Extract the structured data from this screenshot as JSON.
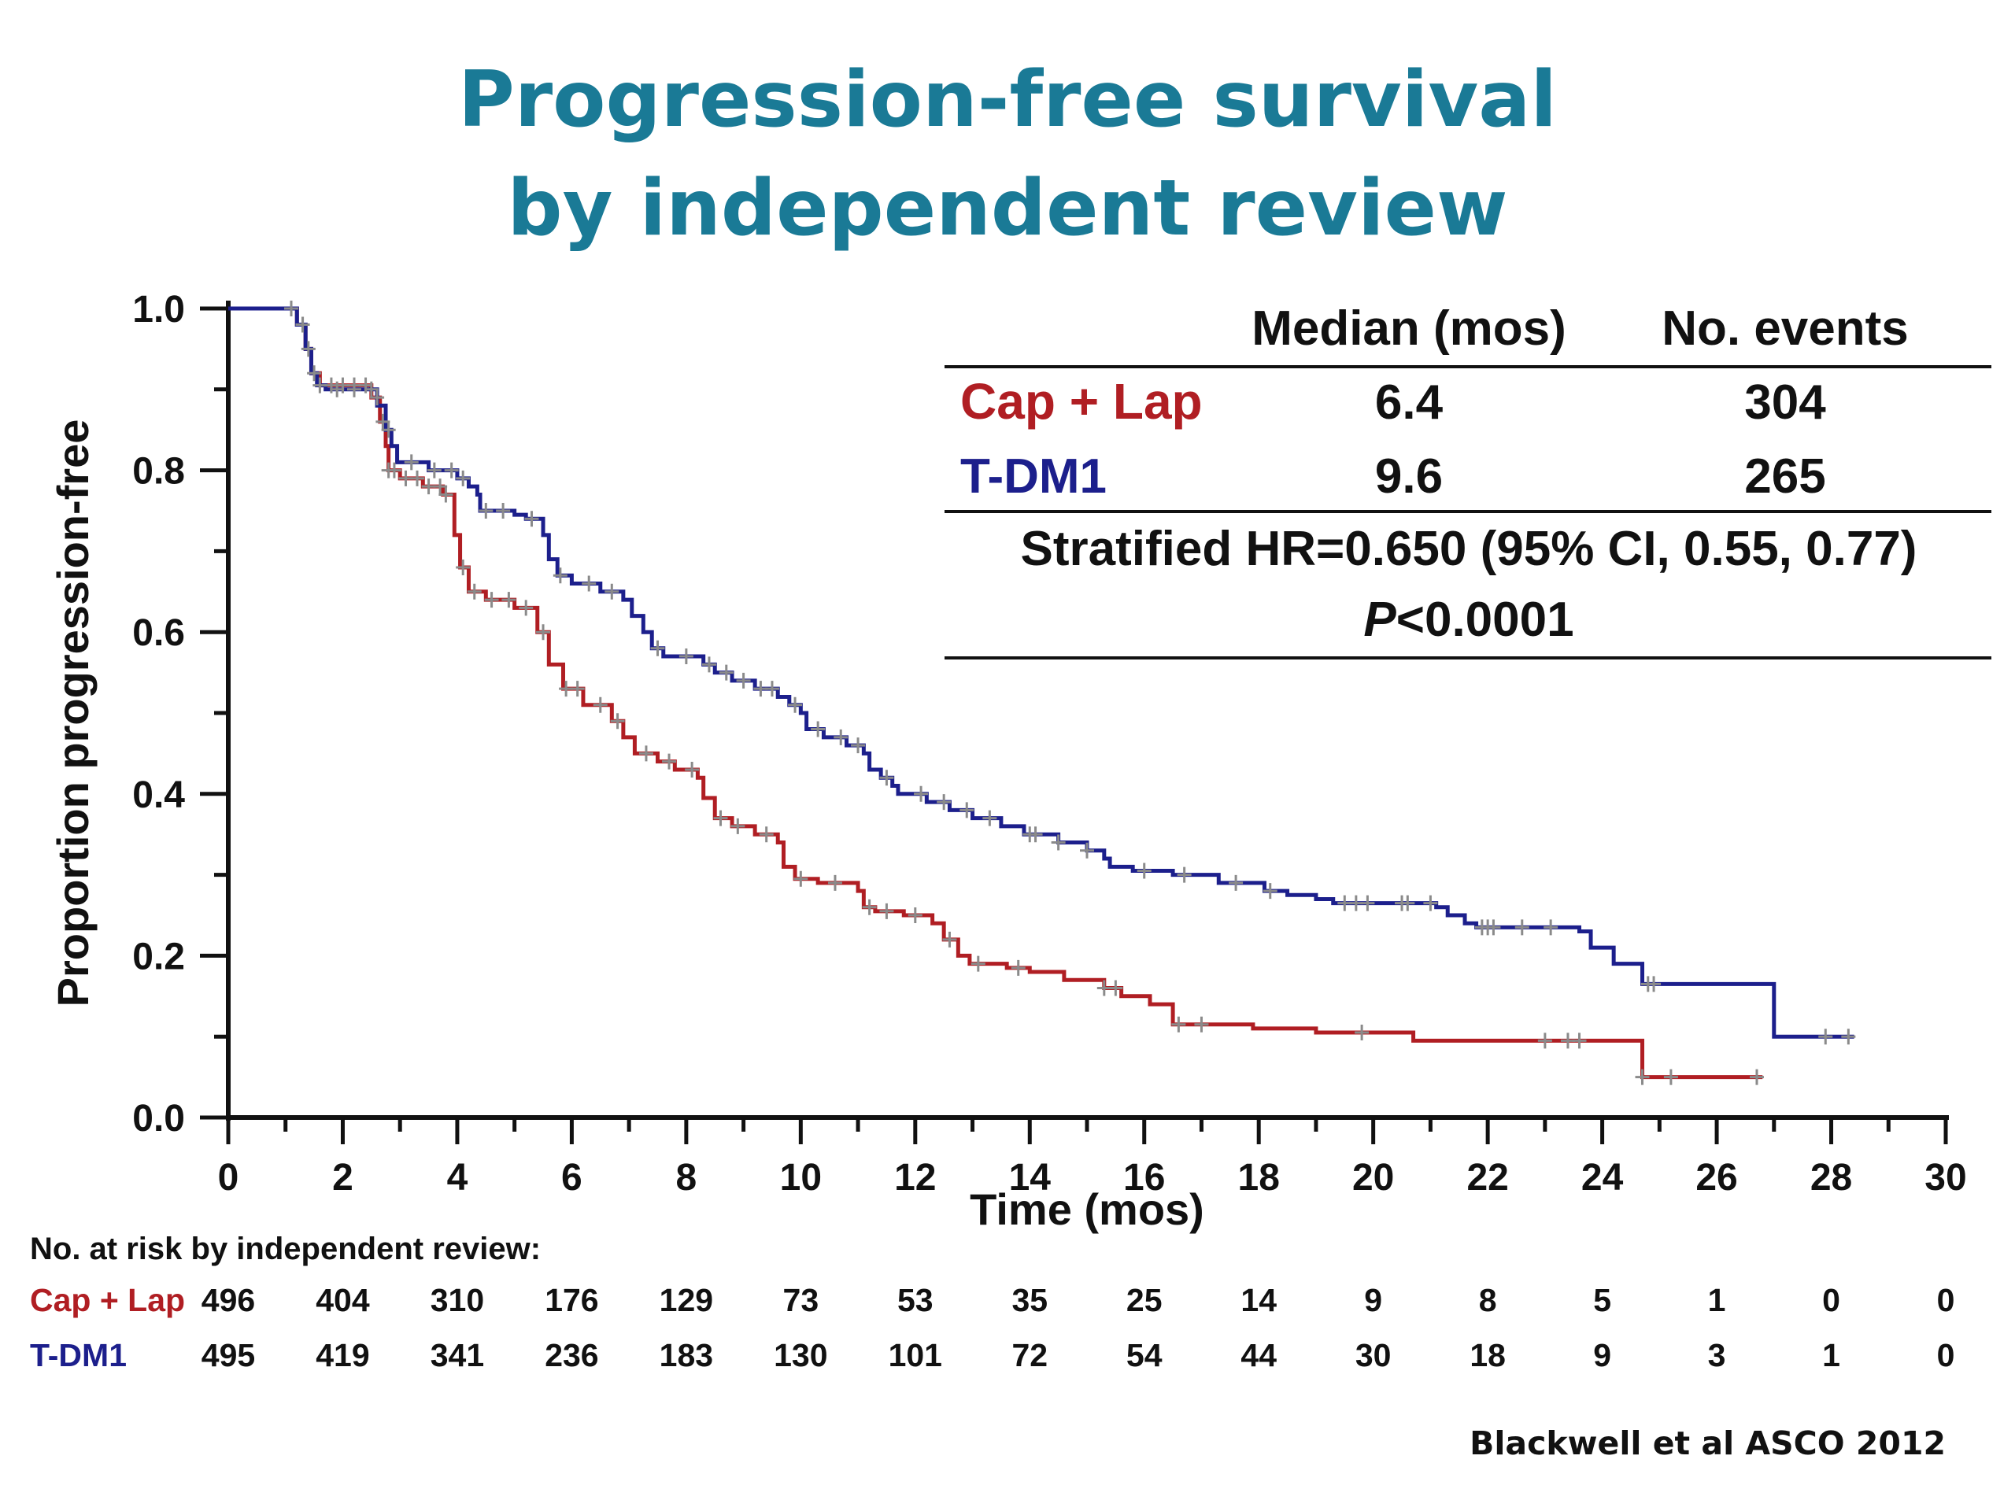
{
  "title_lines": [
    "Progression-free survival",
    "by independent review"
  ],
  "colors": {
    "title": "#1a7a96",
    "cap_lap": "#b01e23",
    "tdm1": "#1c1f8c",
    "censor": "#8a8a8a"
  },
  "chart_data": {
    "type": "line",
    "subtype": "kaplan-meier step",
    "xlabel": "Time (mos)",
    "ylabel": "Proportion progression-free",
    "xlim": [
      0,
      30
    ],
    "ylim": [
      0,
      1
    ],
    "xticks": [
      "0",
      "2",
      "4",
      "6",
      "8",
      "10",
      "12",
      "14",
      "16",
      "18",
      "20",
      "22",
      "24",
      "26",
      "28",
      "30"
    ],
    "yticks": [
      "0.0",
      "0.2",
      "0.4",
      "0.6",
      "0.8",
      "1.0"
    ],
    "grid": false,
    "series": [
      {
        "name": "Cap + Lap",
        "color": "#b01e23",
        "steps": [
          [
            0,
            1.0
          ],
          [
            1.2,
            0.98
          ],
          [
            1.35,
            0.95
          ],
          [
            1.45,
            0.92
          ],
          [
            1.6,
            0.905
          ],
          [
            2.5,
            0.89
          ],
          [
            2.65,
            0.86
          ],
          [
            2.75,
            0.83
          ],
          [
            2.8,
            0.8
          ],
          [
            3.0,
            0.79
          ],
          [
            3.4,
            0.78
          ],
          [
            3.75,
            0.77
          ],
          [
            3.95,
            0.72
          ],
          [
            4.05,
            0.68
          ],
          [
            4.2,
            0.65
          ],
          [
            4.5,
            0.64
          ],
          [
            5.0,
            0.63
          ],
          [
            5.4,
            0.6
          ],
          [
            5.6,
            0.56
          ],
          [
            5.85,
            0.53
          ],
          [
            6.2,
            0.51
          ],
          [
            6.7,
            0.49
          ],
          [
            6.9,
            0.47
          ],
          [
            7.1,
            0.45
          ],
          [
            7.5,
            0.44
          ],
          [
            7.8,
            0.43
          ],
          [
            8.2,
            0.42
          ],
          [
            8.3,
            0.395
          ],
          [
            8.5,
            0.37
          ],
          [
            8.8,
            0.36
          ],
          [
            9.2,
            0.35
          ],
          [
            9.6,
            0.34
          ],
          [
            9.7,
            0.31
          ],
          [
            9.9,
            0.295
          ],
          [
            10.3,
            0.29
          ],
          [
            11.0,
            0.28
          ],
          [
            11.1,
            0.26
          ],
          [
            11.3,
            0.255
          ],
          [
            11.8,
            0.25
          ],
          [
            12.3,
            0.24
          ],
          [
            12.5,
            0.22
          ],
          [
            12.75,
            0.2
          ],
          [
            12.95,
            0.19
          ],
          [
            13.6,
            0.185
          ],
          [
            14.0,
            0.18
          ],
          [
            14.6,
            0.17
          ],
          [
            15.3,
            0.16
          ],
          [
            15.6,
            0.15
          ],
          [
            16.1,
            0.14
          ],
          [
            16.5,
            0.13
          ],
          [
            16.5,
            0.115
          ],
          [
            17.9,
            0.11
          ],
          [
            19.0,
            0.105
          ],
          [
            20.7,
            0.095
          ],
          [
            24.7,
            0.05
          ],
          [
            26.8,
            0.05
          ]
        ],
        "censor_times": [
          1.1,
          1.3,
          1.4,
          1.6,
          1.8,
          2.0,
          2.2,
          2.4,
          2.6,
          2.7,
          2.8,
          2.9,
          3.1,
          3.3,
          3.5,
          3.7,
          3.8,
          4.1,
          4.3,
          4.6,
          4.9,
          5.2,
          5.5,
          5.9,
          6.1,
          6.5,
          6.8,
          7.3,
          7.7,
          8.1,
          8.6,
          8.9,
          9.4,
          10.0,
          10.6,
          11.2,
          11.5,
          12.0,
          12.6,
          13.1,
          13.8,
          15.3,
          15.5,
          16.6,
          17.0,
          19.8,
          23.0,
          23.4,
          23.6,
          24.7,
          25.2,
          26.7
        ],
        "median_mos": "6.4",
        "events": "304"
      },
      {
        "name": "T-DM1",
        "color": "#1c1f8c",
        "steps": [
          [
            0,
            1.0
          ],
          [
            1.2,
            0.98
          ],
          [
            1.35,
            0.95
          ],
          [
            1.45,
            0.92
          ],
          [
            1.55,
            0.905
          ],
          [
            1.7,
            0.9
          ],
          [
            2.6,
            0.88
          ],
          [
            2.75,
            0.85
          ],
          [
            2.85,
            0.83
          ],
          [
            2.95,
            0.81
          ],
          [
            3.5,
            0.8
          ],
          [
            4.0,
            0.79
          ],
          [
            4.2,
            0.78
          ],
          [
            4.35,
            0.77
          ],
          [
            4.4,
            0.75
          ],
          [
            5.0,
            0.745
          ],
          [
            5.2,
            0.74
          ],
          [
            5.5,
            0.72
          ],
          [
            5.6,
            0.69
          ],
          [
            5.75,
            0.67
          ],
          [
            6.0,
            0.66
          ],
          [
            6.5,
            0.65
          ],
          [
            6.9,
            0.64
          ],
          [
            7.05,
            0.62
          ],
          [
            7.25,
            0.6
          ],
          [
            7.4,
            0.58
          ],
          [
            7.6,
            0.57
          ],
          [
            8.3,
            0.56
          ],
          [
            8.5,
            0.55
          ],
          [
            8.8,
            0.54
          ],
          [
            9.2,
            0.53
          ],
          [
            9.6,
            0.52
          ],
          [
            9.8,
            0.51
          ],
          [
            10.0,
            0.5
          ],
          [
            10.1,
            0.48
          ],
          [
            10.4,
            0.47
          ],
          [
            10.8,
            0.46
          ],
          [
            11.1,
            0.45
          ],
          [
            11.2,
            0.43
          ],
          [
            11.4,
            0.42
          ],
          [
            11.6,
            0.41
          ],
          [
            11.7,
            0.4
          ],
          [
            12.2,
            0.39
          ],
          [
            12.6,
            0.38
          ],
          [
            13.0,
            0.37
          ],
          [
            13.5,
            0.36
          ],
          [
            13.9,
            0.35
          ],
          [
            14.5,
            0.34
          ],
          [
            15.0,
            0.33
          ],
          [
            15.3,
            0.32
          ],
          [
            15.4,
            0.31
          ],
          [
            15.8,
            0.305
          ],
          [
            16.5,
            0.3
          ],
          [
            17.3,
            0.29
          ],
          [
            17.9,
            0.29
          ],
          [
            18.1,
            0.28
          ],
          [
            18.5,
            0.275
          ],
          [
            19.0,
            0.27
          ],
          [
            19.3,
            0.265
          ],
          [
            20.0,
            0.265
          ],
          [
            21.1,
            0.26
          ],
          [
            21.3,
            0.25
          ],
          [
            21.6,
            0.24
          ],
          [
            21.8,
            0.235
          ],
          [
            23.6,
            0.23
          ],
          [
            23.8,
            0.21
          ],
          [
            24.2,
            0.19
          ],
          [
            24.7,
            0.165
          ],
          [
            27.0,
            0.1
          ],
          [
            28.4,
            0.1
          ]
        ],
        "censor_times": [
          1.1,
          1.3,
          1.5,
          1.9,
          2.2,
          2.5,
          2.8,
          3.2,
          3.6,
          3.9,
          4.1,
          4.5,
          4.8,
          5.3,
          5.8,
          6.3,
          6.7,
          7.5,
          8.0,
          8.4,
          8.7,
          9.0,
          9.3,
          9.5,
          9.9,
          10.3,
          10.7,
          11.0,
          11.5,
          12.1,
          12.5,
          12.9,
          13.3,
          14.0,
          14.1,
          14.5,
          15.0,
          16.0,
          16.7,
          17.6,
          18.2,
          19.5,
          19.7,
          19.9,
          20.5,
          20.6,
          21.0,
          21.9,
          22.0,
          22.1,
          22.6,
          23.1,
          24.8,
          24.9,
          27.9,
          28.3
        ],
        "median_mos": "9.6",
        "events": "265"
      }
    ]
  },
  "stats_table": {
    "header_median": "Median (mos)",
    "header_events": "No. events",
    "rows": [
      {
        "label": "Cap + Lap",
        "median": "6.4",
        "events": "304"
      },
      {
        "label": "T-DM1",
        "median": "9.6",
        "events": "265"
      }
    ],
    "hr_text": "Stratified HR=0.650 (95% CI, 0.55, 0.77)",
    "p_italic": "P",
    "p_rest": "<0.0001"
  },
  "at_risk": {
    "title": "No. at risk by independent review:",
    "rows": [
      {
        "label": "Cap + Lap",
        "values": [
          "496",
          "404",
          "310",
          "176",
          "129",
          "73",
          "53",
          "35",
          "25",
          "14",
          "9",
          "8",
          "5",
          "1",
          "0",
          "0"
        ]
      },
      {
        "label": "T-DM1",
        "values": [
          "495",
          "419",
          "341",
          "236",
          "183",
          "130",
          "101",
          "72",
          "54",
          "44",
          "30",
          "18",
          "9",
          "3",
          "1",
          "0"
        ]
      }
    ]
  },
  "citation": "Blackwell et al   ASCO 2012"
}
